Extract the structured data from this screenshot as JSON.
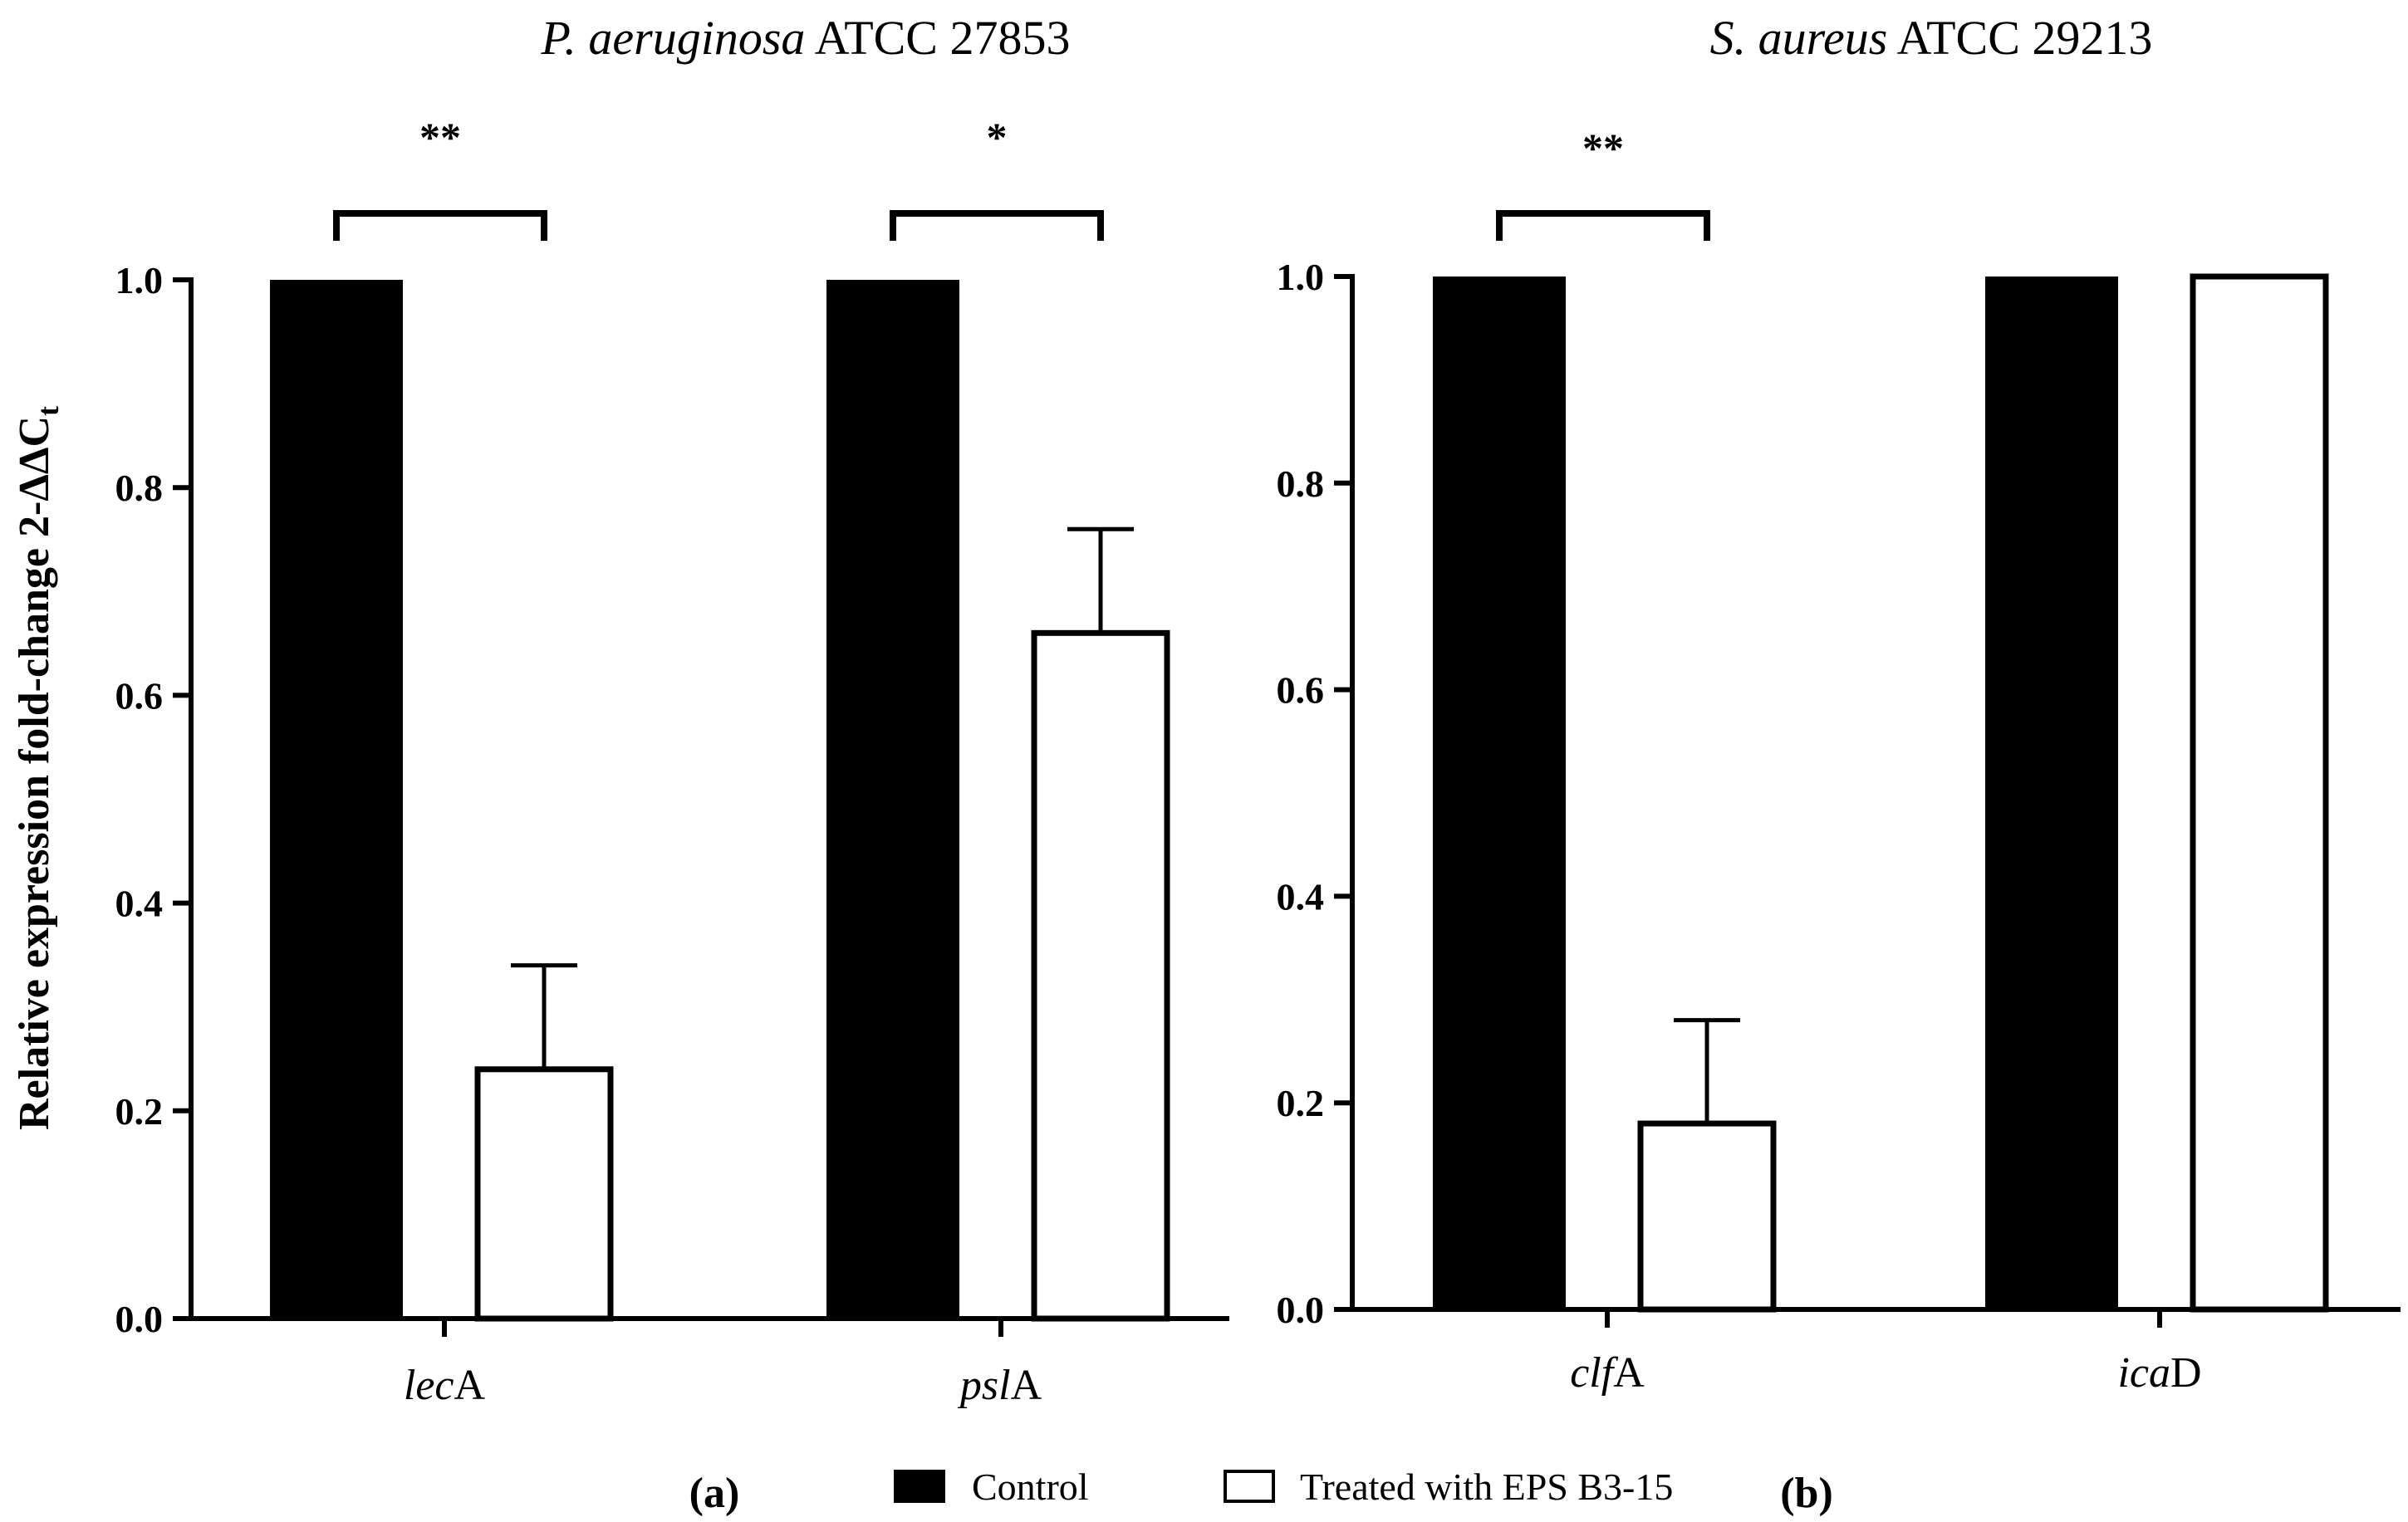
{
  "chart_data": [
    {
      "type": "bar",
      "panel_label": "(a)",
      "title_italic": "P. aeruginosa",
      "title_rest": " ATCC 27853",
      "ylabel": "Relative expression fold-change 2-ΔΔC",
      "ylabel_subscript": "t",
      "ylim": [
        0,
        1.0
      ],
      "yticks": [
        "0.0",
        "0.2",
        "0.4",
        "0.6",
        "0.8",
        "1.0"
      ],
      "categories": [
        {
          "italic": "lec",
          "rest": "A"
        },
        {
          "italic": "psl",
          "rest": "A"
        }
      ],
      "series": [
        {
          "name": "Control",
          "values": [
            1.0,
            1.0
          ],
          "errors": [
            0,
            0
          ]
        },
        {
          "name": "Treated with EPS B3-15",
          "values": [
            0.24,
            0.66
          ],
          "errors": [
            0.1,
            0.1
          ]
        }
      ],
      "significance": [
        "**",
        "*"
      ]
    },
    {
      "type": "bar",
      "panel_label": "(b)",
      "title_italic": "S. aureus",
      "title_rest": " ATCC 29213",
      "ylim": [
        0,
        1.0
      ],
      "yticks": [
        "0.0",
        "0.2",
        "0.4",
        "0.6",
        "0.8",
        "1.0"
      ],
      "categories": [
        {
          "italic": "clf",
          "rest": "A"
        },
        {
          "italic": "ica",
          "rest": "D"
        }
      ],
      "series": [
        {
          "name": "Control",
          "values": [
            1.0,
            1.0
          ],
          "errors": [
            0,
            0
          ]
        },
        {
          "name": "Treated with EPS B3-15",
          "values": [
            0.18,
            1.0
          ],
          "errors": [
            0.1,
            0
          ]
        }
      ],
      "significance": [
        "**",
        ""
      ]
    }
  ],
  "legend": {
    "items": [
      {
        "label": "Control",
        "color": "#000000"
      },
      {
        "label": "Treated with EPS B3-15",
        "color": "#ffffff"
      }
    ]
  },
  "colors": {
    "control": "#000000",
    "treated": "#ffffff",
    "stroke": "#000000"
  }
}
